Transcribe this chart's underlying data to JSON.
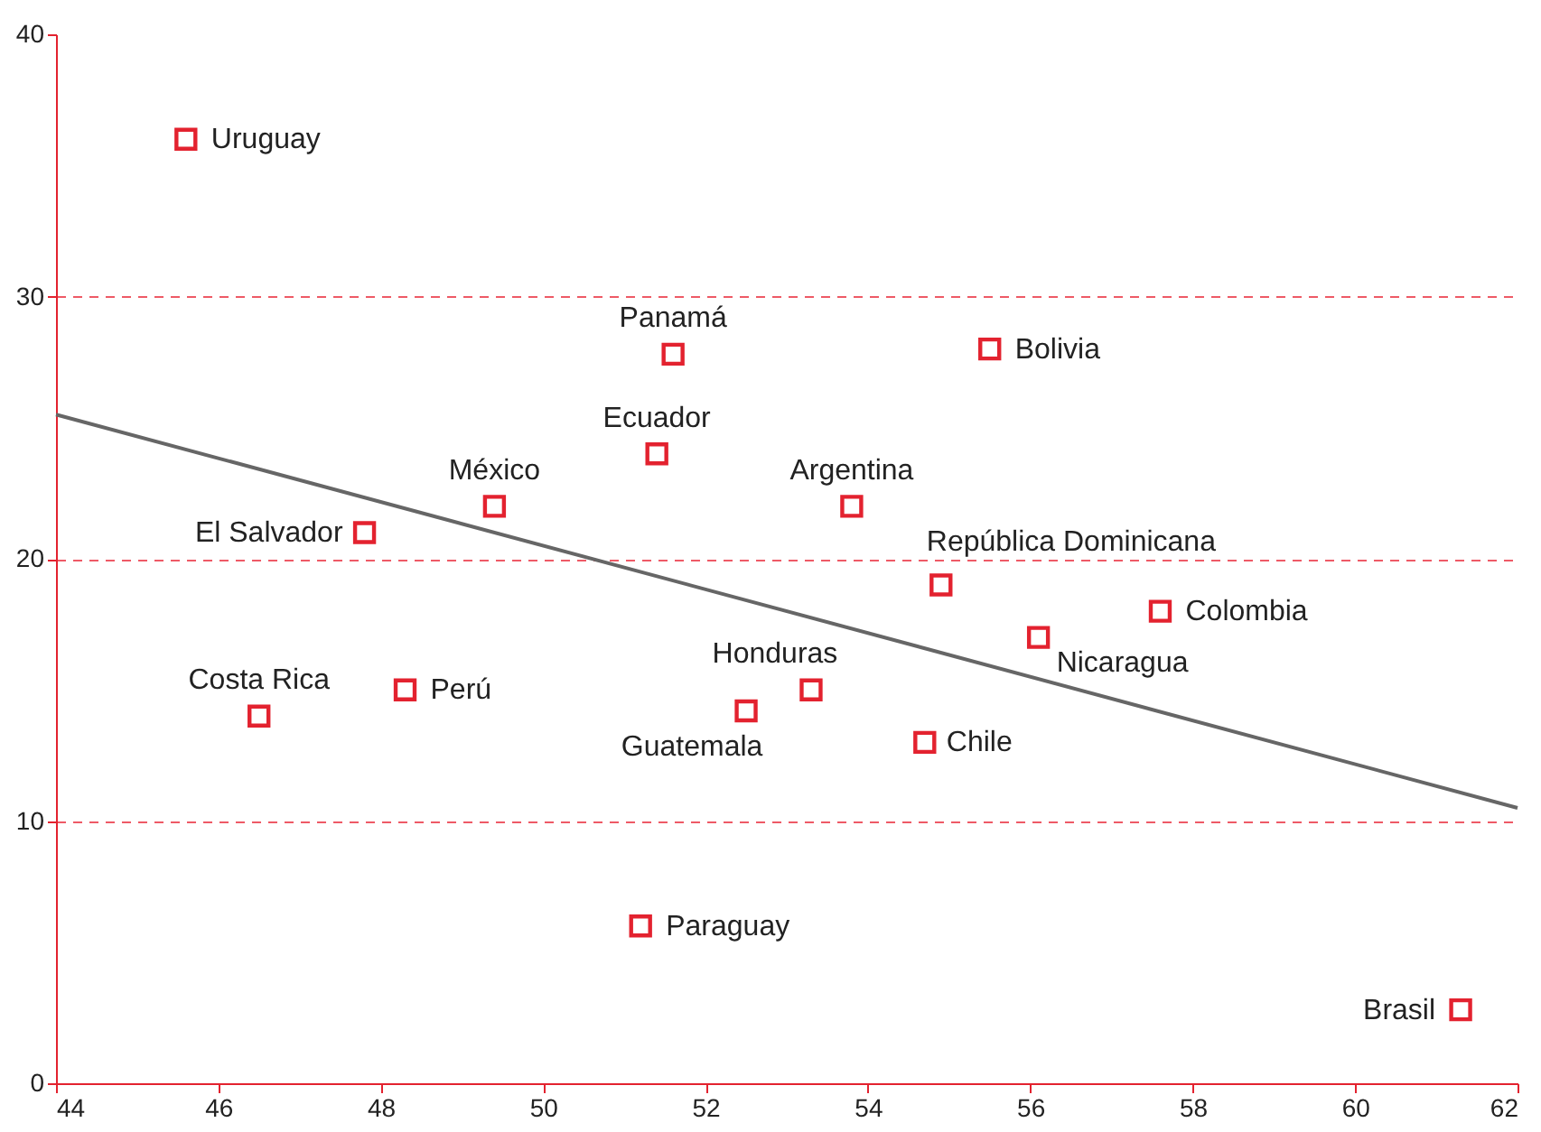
{
  "chart_data": {
    "type": "scatter",
    "xlim": [
      44,
      62
    ],
    "xticks": [
      44,
      46,
      48,
      50,
      52,
      54,
      56,
      58,
      60,
      62
    ],
    "ylim": [
      0,
      40
    ],
    "yticks": [
      0,
      10,
      20,
      30,
      40
    ],
    "grid": "y",
    "marker": "square",
    "legend": false,
    "series": [
      {
        "type": "scatter",
        "color": "#e3222f",
        "x": [
          45.6,
          51.6,
          55.5,
          51.4,
          49.4,
          53.8,
          47.8,
          54.9,
          57.6,
          56.1,
          46.5,
          48.3,
          53.3,
          52.5,
          54.7,
          51.2,
          61.3
        ],
        "values": [
          36,
          27.8,
          28,
          24,
          22,
          22,
          21,
          19,
          18,
          17,
          14,
          15,
          15,
          14.2,
          13,
          6,
          2.8
        ]
      },
      {
        "type": "line",
        "color": "#666666",
        "marker": "none",
        "line_style": "solid",
        "x": [
          44,
          62
        ],
        "values": [
          25.5,
          10.5
        ]
      }
    ],
    "annotations": [
      {
        "text": "Uruguay",
        "x": 45.6,
        "y": 36
      },
      {
        "text": "Panamá",
        "x": 51.6,
        "y": 27.8
      },
      {
        "text": "Bolivia",
        "x": 55.5,
        "y": 28
      },
      {
        "text": "Ecuador",
        "x": 51.4,
        "y": 24
      },
      {
        "text": "México",
        "x": 49.4,
        "y": 22
      },
      {
        "text": "Argentina",
        "x": 53.8,
        "y": 22
      },
      {
        "text": "El Salvador",
        "x": 47.8,
        "y": 21
      },
      {
        "text": "República Dominicana",
        "x": 54.9,
        "y": 19
      },
      {
        "text": "Colombia",
        "x": 57.6,
        "y": 18
      },
      {
        "text": "Nicaragua",
        "x": 56.1,
        "y": 17
      },
      {
        "text": "Costa Rica",
        "x": 46.5,
        "y": 14
      },
      {
        "text": "Perú",
        "x": 48.3,
        "y": 15
      },
      {
        "text": "Honduras",
        "x": 53.3,
        "y": 15
      },
      {
        "text": "Guatemala",
        "x": 52.5,
        "y": 14.2
      },
      {
        "text": "Chile",
        "x": 54.7,
        "y": 13
      },
      {
        "text": "Paraguay",
        "x": 51.2,
        "y": 6
      },
      {
        "text": "Brasil",
        "x": 61.3,
        "y": 2.8
      }
    ]
  }
}
